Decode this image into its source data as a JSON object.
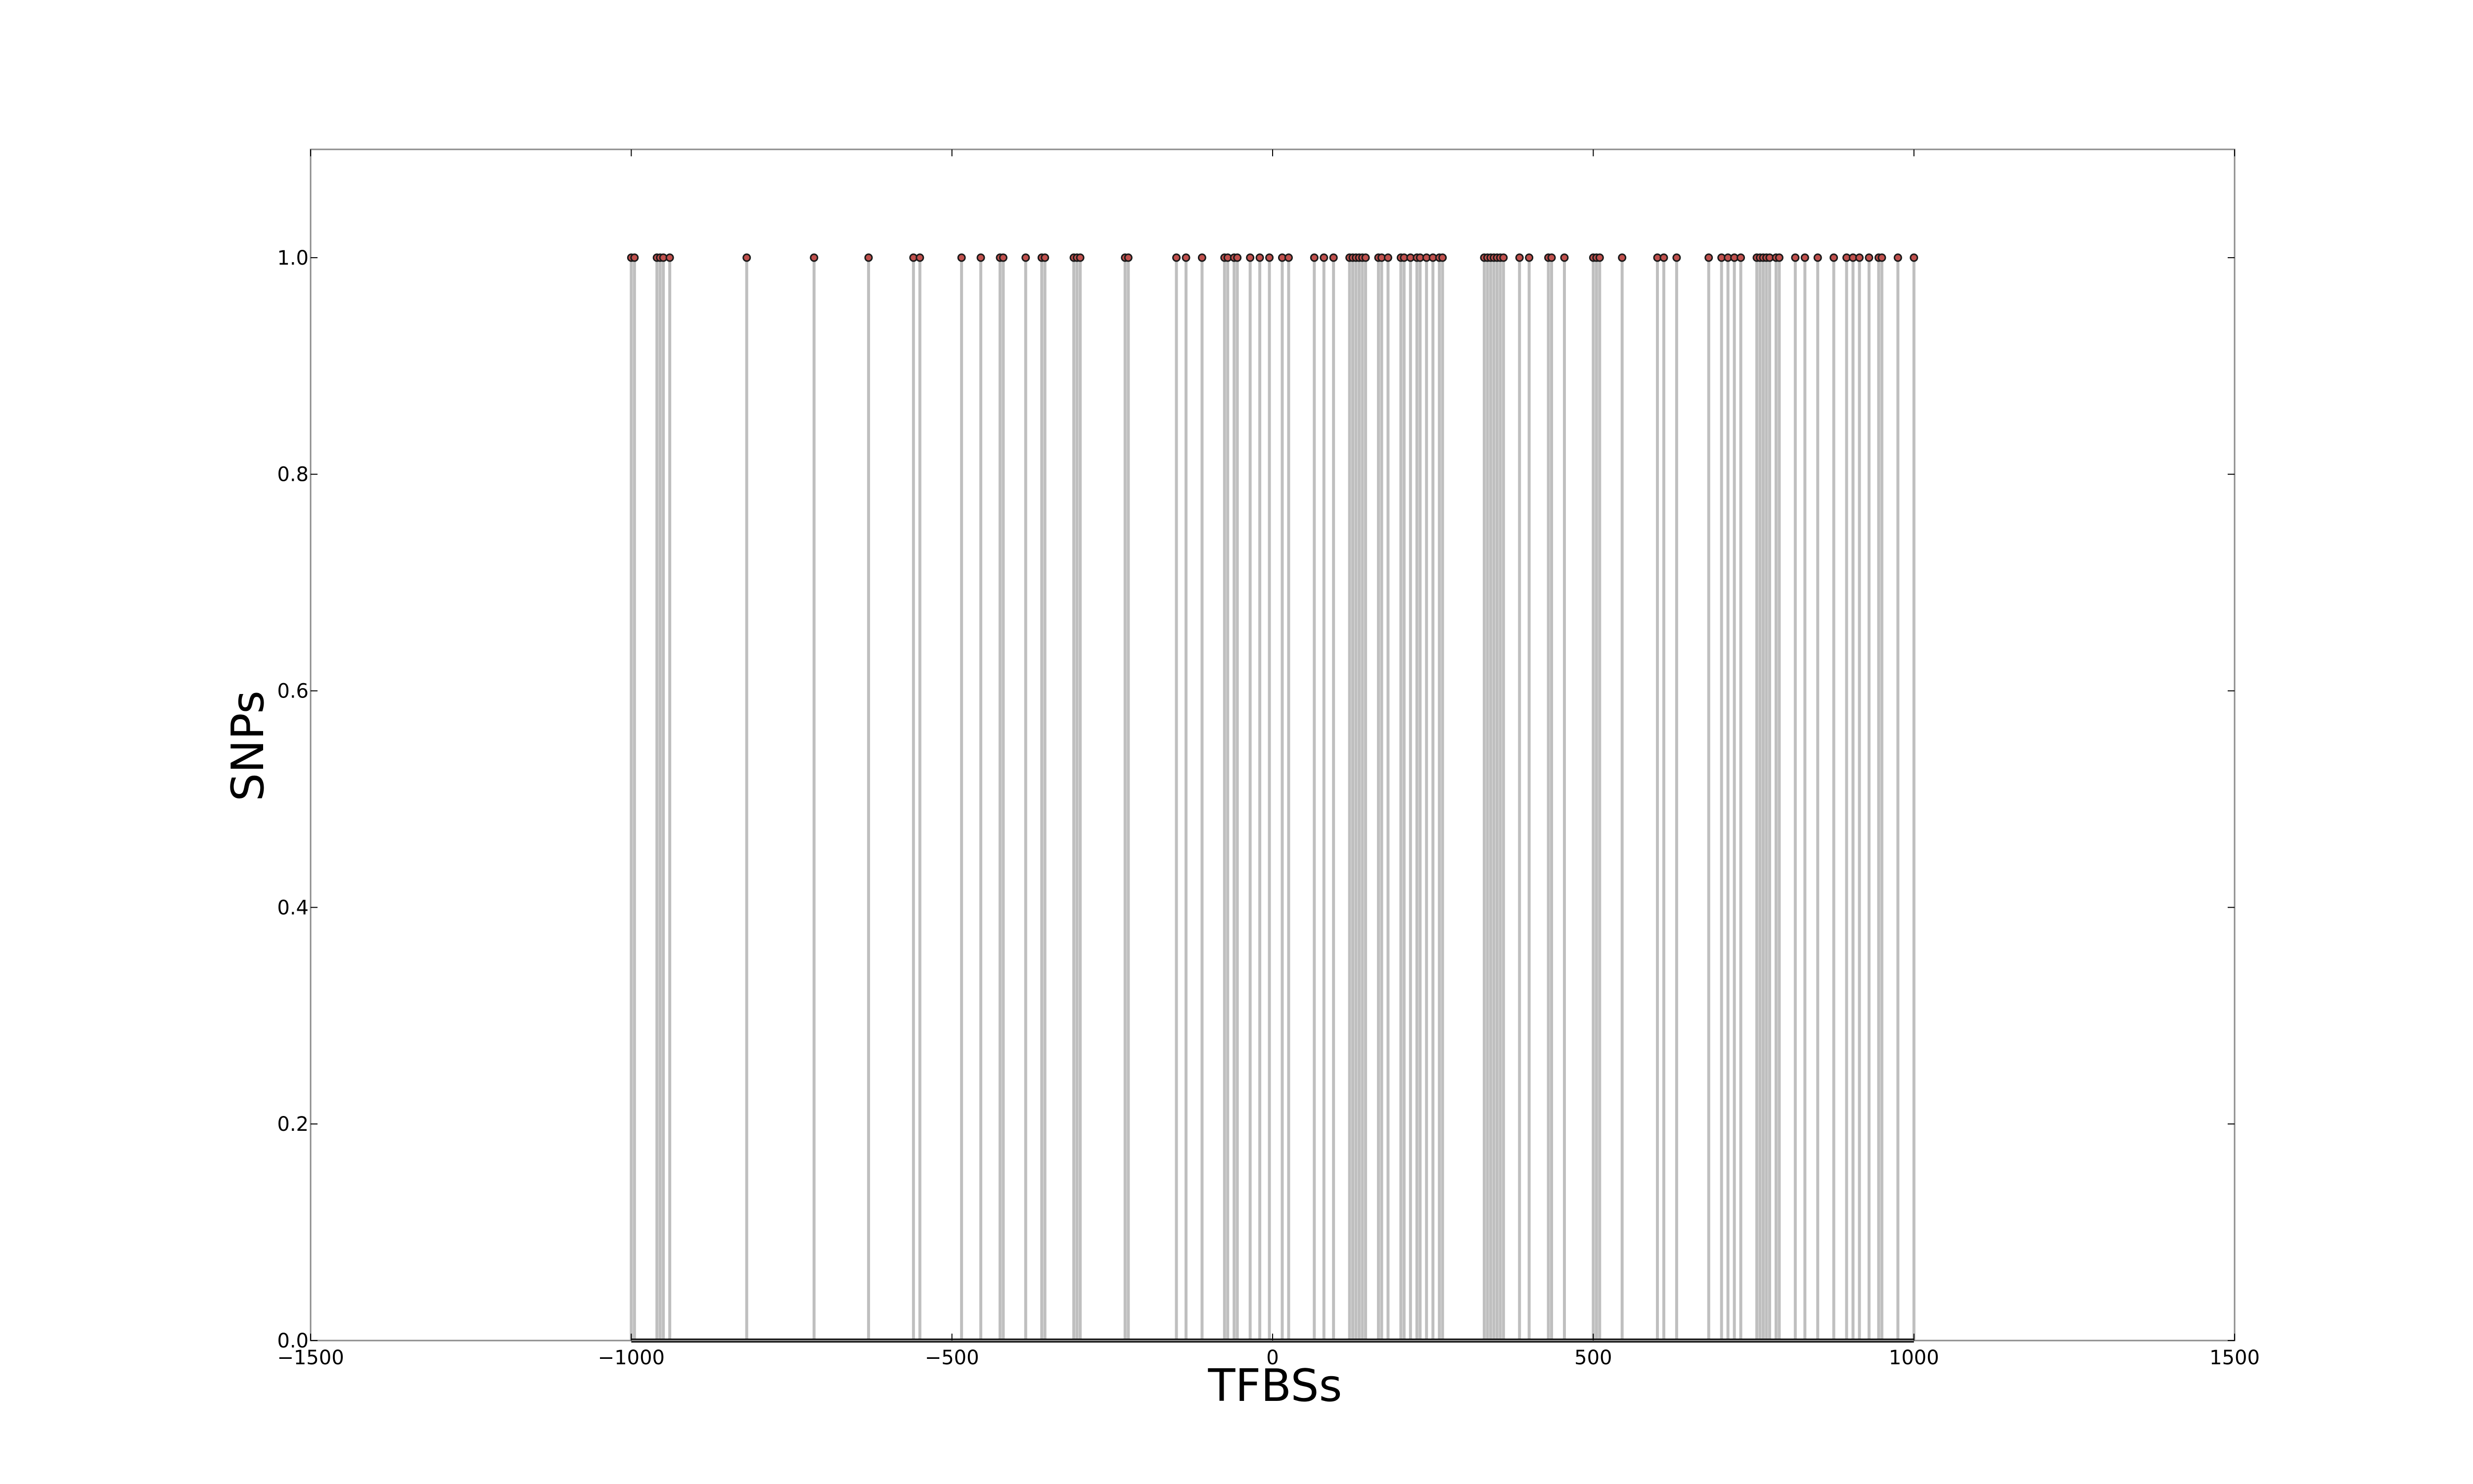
{
  "chart_data": {
    "type": "stem",
    "xlabel": "TFBSs",
    "ylabel": "SNPs",
    "xlim": [
      -1500,
      1500
    ],
    "ylim": [
      0,
      1.1
    ],
    "x_ticks": [
      -1500,
      -1000,
      -500,
      0,
      500,
      1000,
      1500
    ],
    "x_tick_labels": [
      "−1500",
      "−1000",
      "−500",
      "0",
      "500",
      "1000",
      "1500"
    ],
    "y_ticks": [
      0.0,
      0.2,
      0.4,
      0.6,
      0.8,
      1.0
    ],
    "y_tick_labels": [
      "0.0",
      "0.2",
      "0.4",
      "0.6",
      "0.8",
      "1.0"
    ],
    "baseline": {
      "from": -1000,
      "to": 1000,
      "y": 0
    },
    "grid": false,
    "colors": {
      "stem": "#bfbfbf",
      "marker_fill": "#c0504d",
      "marker_edge": "#1a1a1a",
      "baseline": "#000000",
      "axes": "#8c8c8c"
    },
    "x": [
      -1000,
      -995,
      -960,
      -955,
      -950,
      -940,
      -820,
      -715,
      -630,
      -560,
      -550,
      -485,
      -455,
      -425,
      -420,
      -385,
      -360,
      -355,
      -310,
      -305,
      -300,
      -230,
      -225,
      -150,
      -135,
      -110,
      -75,
      -70,
      -60,
      -55,
      -35,
      -20,
      -5,
      15,
      25,
      65,
      80,
      95,
      120,
      125,
      130,
      135,
      140,
      145,
      165,
      170,
      180,
      200,
      205,
      215,
      225,
      230,
      240,
      250,
      260,
      265,
      330,
      335,
      340,
      345,
      350,
      355,
      360,
      385,
      400,
      430,
      435,
      455,
      500,
      505,
      510,
      545,
      600,
      610,
      630,
      680,
      700,
      710,
      720,
      730,
      755,
      760,
      765,
      770,
      775,
      785,
      790,
      815,
      830,
      850,
      875,
      895,
      905,
      915,
      930,
      945,
      950,
      975,
      1000
    ],
    "y": [
      1,
      1,
      1,
      1,
      1,
      1,
      1,
      1,
      1,
      1,
      1,
      1,
      1,
      1,
      1,
      1,
      1,
      1,
      1,
      1,
      1,
      1,
      1,
      1,
      1,
      1,
      1,
      1,
      1,
      1,
      1,
      1,
      1,
      1,
      1,
      1,
      1,
      1,
      1,
      1,
      1,
      1,
      1,
      1,
      1,
      1,
      1,
      1,
      1,
      1,
      1,
      1,
      1,
      1,
      1,
      1,
      1,
      1,
      1,
      1,
      1,
      1,
      1,
      1,
      1,
      1,
      1,
      1,
      1,
      1,
      1,
      1,
      1,
      1,
      1,
      1,
      1,
      1,
      1,
      1,
      1,
      1,
      1,
      1,
      1,
      1,
      1,
      1,
      1,
      1,
      1,
      1,
      1,
      1,
      1,
      1,
      1,
      1,
      1
    ]
  }
}
